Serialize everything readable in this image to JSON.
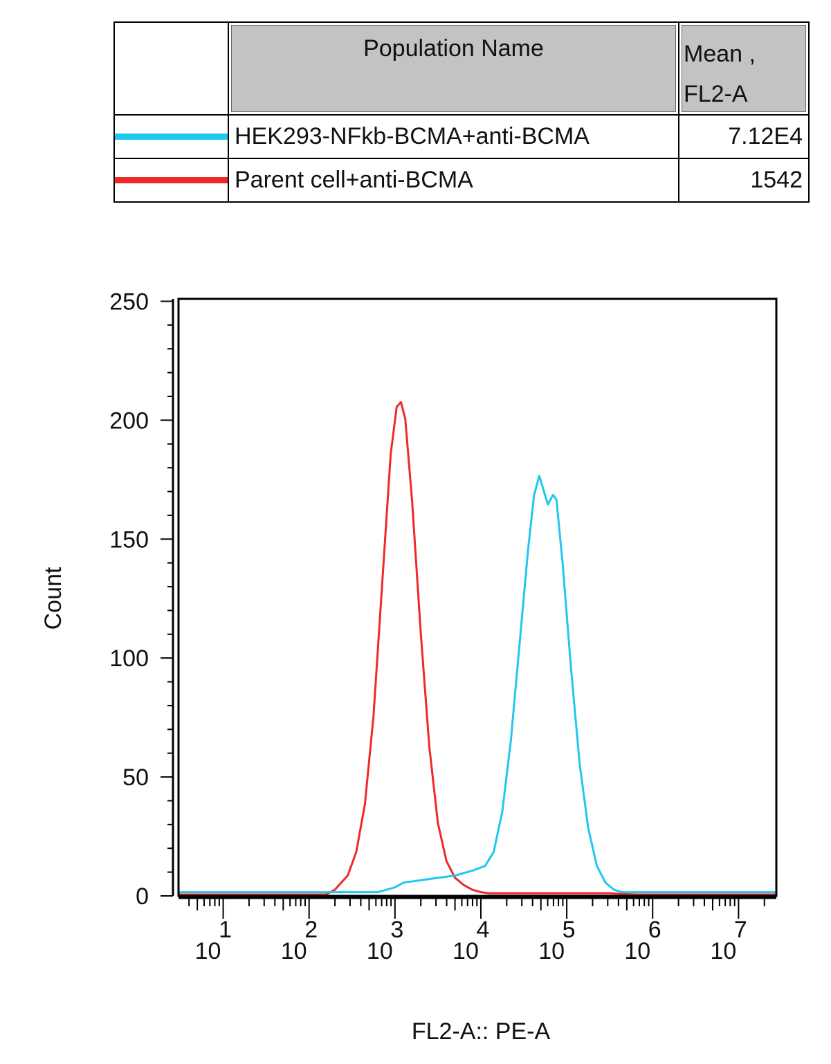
{
  "legend": {
    "header_name": "Population Name",
    "header_stat_line1": "Mean ,",
    "header_stat_line2": "FL2-A",
    "rows": [
      {
        "name": "HEK293-NFkb-BCMA+anti-BCMA",
        "mean": "7.12E4",
        "color": "#1ec8f0"
      },
      {
        "name": "Parent cell+anti-BCMA",
        "mean": "1542",
        "color": "#f02828"
      }
    ]
  },
  "chart_data": {
    "type": "line",
    "title": "",
    "xlabel": "FL2-A:: PE-A",
    "ylabel": "Count",
    "xscale": "log",
    "xlim_log10": [
      0.48,
      7.44
    ],
    "ylim": [
      0,
      251
    ],
    "yticks": [
      0,
      50,
      100,
      150,
      200,
      250
    ],
    "xticks": [
      {
        "base": "10",
        "exp": "1",
        "log": 1
      },
      {
        "base": "10",
        "exp": "2",
        "log": 2
      },
      {
        "base": "10",
        "exp": "3",
        "log": 3
      },
      {
        "base": "10",
        "exp": "4",
        "log": 4
      },
      {
        "base": "10",
        "exp": "5",
        "log": 5
      },
      {
        "base": "10",
        "exp": "6",
        "log": 6
      },
      {
        "base": "10",
        "exp": "7",
        "log": 7
      }
    ],
    "series": [
      {
        "name": "Parent cell+anti-BCMA",
        "color": "#f02828",
        "points_log10x_count": [
          [
            0.48,
            0
          ],
          [
            2.2,
            0
          ],
          [
            2.3,
            2
          ],
          [
            2.45,
            8
          ],
          [
            2.55,
            18
          ],
          [
            2.65,
            38
          ],
          [
            2.75,
            75
          ],
          [
            2.85,
            130
          ],
          [
            2.95,
            185
          ],
          [
            3.02,
            205
          ],
          [
            3.07,
            207
          ],
          [
            3.12,
            200
          ],
          [
            3.2,
            165
          ],
          [
            3.3,
            110
          ],
          [
            3.4,
            62
          ],
          [
            3.5,
            30
          ],
          [
            3.6,
            14
          ],
          [
            3.7,
            7
          ],
          [
            3.8,
            4
          ],
          [
            3.9,
            2
          ],
          [
            4.0,
            1
          ],
          [
            4.1,
            0.5
          ],
          [
            5.5,
            0.5
          ],
          [
            5.8,
            0
          ],
          [
            7.44,
            0
          ]
        ]
      },
      {
        "name": "HEK293-NFkb-BCMA+anti-BCMA",
        "color": "#1ec8f0",
        "points_log10x_count": [
          [
            0.48,
            1
          ],
          [
            2.8,
            1
          ],
          [
            3.0,
            3
          ],
          [
            3.1,
            5
          ],
          [
            3.3,
            6
          ],
          [
            3.5,
            7
          ],
          [
            3.7,
            8
          ],
          [
            3.9,
            10
          ],
          [
            4.05,
            12
          ],
          [
            4.15,
            18
          ],
          [
            4.25,
            35
          ],
          [
            4.35,
            65
          ],
          [
            4.45,
            105
          ],
          [
            4.55,
            145
          ],
          [
            4.62,
            168
          ],
          [
            4.68,
            176
          ],
          [
            4.73,
            170
          ],
          [
            4.78,
            164
          ],
          [
            4.84,
            168
          ],
          [
            4.88,
            166
          ],
          [
            4.95,
            140
          ],
          [
            5.05,
            95
          ],
          [
            5.15,
            55
          ],
          [
            5.25,
            28
          ],
          [
            5.35,
            12
          ],
          [
            5.45,
            5
          ],
          [
            5.55,
            2
          ],
          [
            5.65,
            1
          ],
          [
            7.44,
            1
          ]
        ]
      }
    ]
  }
}
